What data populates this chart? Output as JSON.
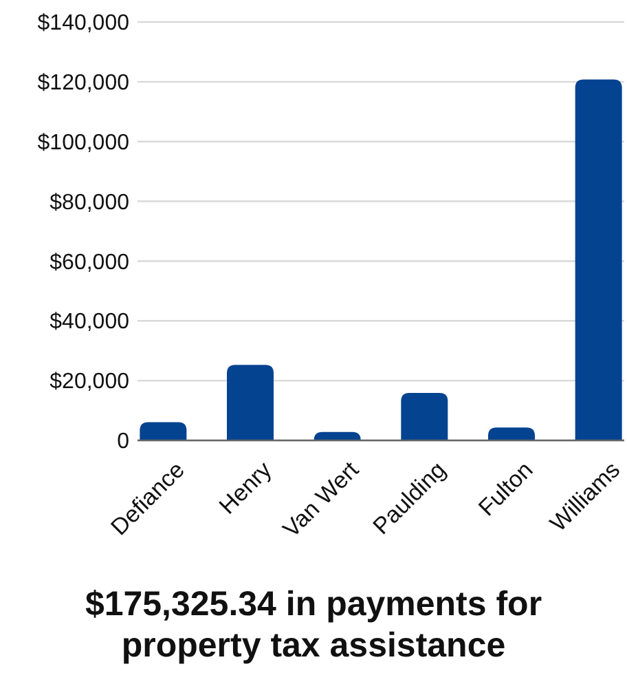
{
  "chart_data": {
    "type": "bar",
    "title": "$175,325.34 in payments for property tax assistance",
    "categories": [
      "Defiance",
      "Henry",
      "Van Wert",
      "Paulding",
      "Fulton",
      "Williams"
    ],
    "values": [
      6100,
      25300,
      2800,
      15900,
      4300,
      120800
    ],
    "color": "#044390",
    "ylim": [
      0,
      140000
    ],
    "yticks": [
      {
        "value": 0,
        "label": "0"
      },
      {
        "value": 20000,
        "label": "$20,000"
      },
      {
        "value": 40000,
        "label": "$40,000"
      },
      {
        "value": 60000,
        "label": "$60,000"
      },
      {
        "value": 80000,
        "label": "$80,000"
      },
      {
        "value": 100000,
        "label": "$100,000"
      },
      {
        "value": 120000,
        "label": "$120,000"
      },
      {
        "value": 140000,
        "label": "$140,000"
      }
    ],
    "grid": "y"
  }
}
